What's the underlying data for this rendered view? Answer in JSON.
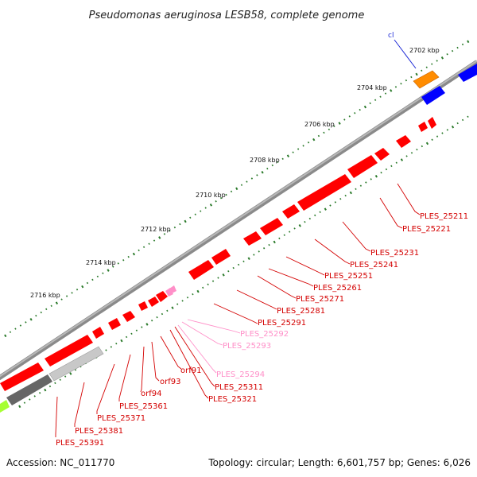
{
  "title": "Pseudomonas aeruginosa LESB58, complete genome",
  "accession": "Accession: NC_011770",
  "summary": "Topology: circular; Length: 6,601,757 bp; Genes: 6,026",
  "colors": {
    "backbone": "#8a8a8a",
    "gene": "#ff0000",
    "pseudogene": "#ff8fc8",
    "label_line_gene": "#d40000",
    "label_line_pseudo": "#ff8fc8",
    "tick": "#2a7a2a",
    "orange": "#ff8c00",
    "blue": "#0000ff",
    "gray_dark": "#666666",
    "gray_light": "#c8c8c8",
    "green": "#a6ff33"
  },
  "scale_labels": [
    "2702 kbp",
    "2704 kbp",
    "2706 kbp",
    "2708 kbp",
    "2710 kbp",
    "2712 kbp",
    "2714 kbp",
    "2716 kbp"
  ],
  "cl_label": "cl",
  "gene_labels": [
    {
      "text": "PLES_25211",
      "type": "gene"
    },
    {
      "text": "PLES_25221",
      "type": "gene"
    },
    {
      "text": "PLES_25231",
      "type": "gene"
    },
    {
      "text": "PLES_25241",
      "type": "gene"
    },
    {
      "text": "PLES_25251",
      "type": "gene"
    },
    {
      "text": "PLES_25261",
      "type": "gene"
    },
    {
      "text": "PLES_25271",
      "type": "gene"
    },
    {
      "text": "PLES_25281",
      "type": "gene"
    },
    {
      "text": "PLES_25291",
      "type": "gene"
    },
    {
      "text": "PLES_25292",
      "type": "pseudo"
    },
    {
      "text": "PLES_25293",
      "type": "pseudo"
    },
    {
      "text": "PLES_25294",
      "type": "pseudo"
    },
    {
      "text": "orf91",
      "type": "gene"
    },
    {
      "text": "PLES_25311",
      "type": "gene"
    },
    {
      "text": "PLES_25321",
      "type": "gene"
    },
    {
      "text": "orf93",
      "type": "gene"
    },
    {
      "text": "orf94",
      "type": "gene"
    },
    {
      "text": "PLES_25361",
      "type": "gene"
    },
    {
      "text": "PLES_25371",
      "type": "gene"
    },
    {
      "text": "PLES_25381",
      "type": "gene"
    },
    {
      "text": "PLES_25391",
      "type": "gene"
    }
  ]
}
